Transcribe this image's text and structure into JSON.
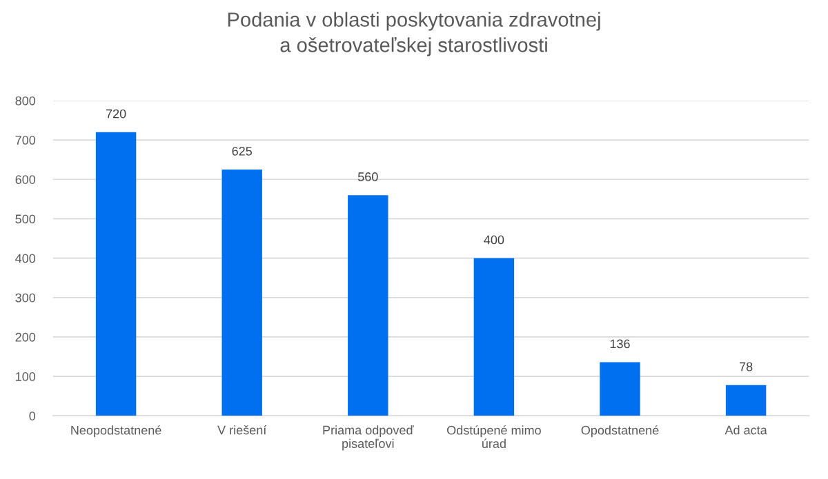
{
  "chart_data": {
    "type": "bar",
    "title": "Podania v oblasti poskytovania zdravotnej\na ošetrovateľskej starostlivosti",
    "categories": [
      "Neopodstatnené",
      "V riešení",
      "Priama odpoveď\npisateľovi",
      "Odstúpené mimo\núrad",
      "Opodstatnené",
      "Ad acta"
    ],
    "values": [
      720,
      625,
      560,
      400,
      136,
      78
    ],
    "color": "#0070f0",
    "ylim": [
      0,
      800
    ],
    "yticks": [
      0,
      100,
      200,
      300,
      400,
      500,
      600,
      700,
      800
    ],
    "grid": "y",
    "data_labels": true,
    "legend": false
  }
}
